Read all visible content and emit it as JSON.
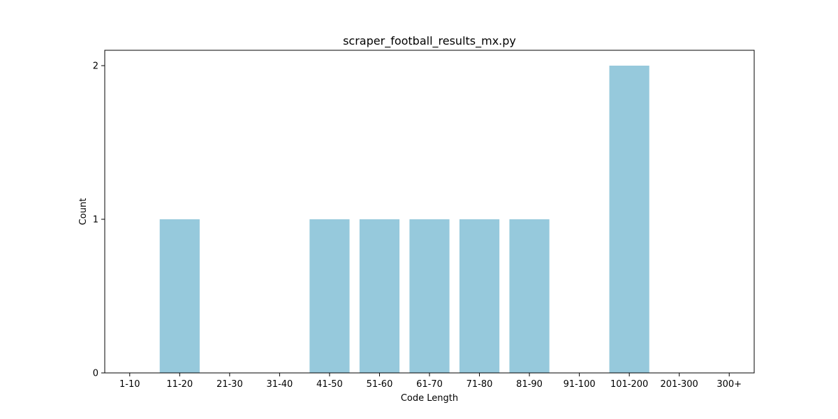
{
  "chart_data": {
    "type": "bar",
    "title": "scraper_football_results_mx.py",
    "xlabel": "Code Length",
    "ylabel": "Count",
    "categories": [
      "1-10",
      "11-20",
      "21-30",
      "31-40",
      "41-50",
      "51-60",
      "61-70",
      "71-80",
      "81-90",
      "91-100",
      "101-200",
      "201-300",
      "300+"
    ],
    "values": [
      0,
      1,
      0,
      0,
      1,
      1,
      1,
      1,
      1,
      0,
      2,
      0,
      0
    ],
    "ylim": [
      0,
      2.1
    ],
    "yticks": [
      0,
      1,
      2
    ],
    "grid": false,
    "bar_color": "#96c9dc",
    "axis_color": "#000000"
  }
}
